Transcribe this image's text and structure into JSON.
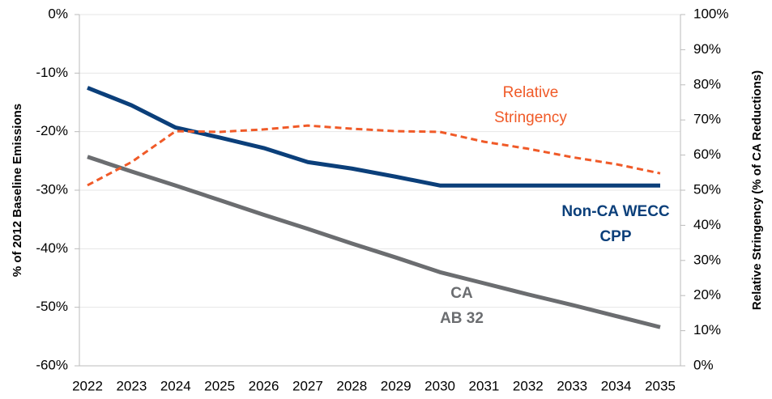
{
  "chart_data": {
    "type": "line",
    "y_label": "% of 2012 Baseline Emissions",
    "y2_label": "Relative Stringency (% of CA Reductions)",
    "categories": [
      "2022",
      "2023",
      "2024",
      "2025",
      "2026",
      "2027",
      "2028",
      "2029",
      "2030",
      "2031",
      "2032",
      "2033",
      "2034",
      "2035"
    ],
    "ylim": [
      -60,
      0
    ],
    "yticks": [
      {
        "value": 0,
        "label": "0%"
      },
      {
        "value": -10,
        "label": "-10%"
      },
      {
        "value": -20,
        "label": "-20%"
      },
      {
        "value": -30,
        "label": "-30%"
      },
      {
        "value": -40,
        "label": "-40%"
      },
      {
        "value": -50,
        "label": "-50%"
      },
      {
        "value": -60,
        "label": "-60%"
      }
    ],
    "y2lim": [
      0,
      100
    ],
    "y2ticks": [
      {
        "value": 0,
        "label": "0%"
      },
      {
        "value": 10,
        "label": "10%"
      },
      {
        "value": 20,
        "label": "20%"
      },
      {
        "value": 30,
        "label": "30%"
      },
      {
        "value": 40,
        "label": "40%"
      },
      {
        "value": 50,
        "label": "50%"
      },
      {
        "value": 60,
        "label": "60%"
      },
      {
        "value": 70,
        "label": "70%"
      },
      {
        "value": 80,
        "label": "80%"
      },
      {
        "value": 90,
        "label": "90%"
      },
      {
        "value": 100,
        "label": "100%"
      }
    ],
    "grid": true,
    "series": [
      {
        "name": [
          "Non-CA WECC",
          "CPP"
        ],
        "color": "#0b3f7a",
        "style": "solid",
        "values": [
          -12.5,
          -15.5,
          -19.3,
          -21,
          -22.8,
          -25.2,
          -26.3,
          -27.7,
          -29.2,
          -29.2,
          -29.2,
          -29.2,
          -29.2,
          -29.2
        ]
      },
      {
        "name": [
          "CA",
          "AB 32"
        ],
        "color": "#6b6d70",
        "style": "solid",
        "values": [
          -24.3,
          -26.8,
          -29.2,
          -31.7,
          -34.2,
          -36.6,
          -39.1,
          -41.5,
          -44,
          -45.9,
          -47.8,
          -49.6,
          -51.5,
          -53.4
        ]
      },
      {
        "name": [
          "Relative",
          "Stringency"
        ],
        "color": "#f05a28",
        "style": "dashed",
        "axis": "y2",
        "values": [
          51.4,
          58,
          66.8,
          66.6,
          67.3,
          68.4,
          67.5,
          66.8,
          66.6,
          63.8,
          61.8,
          59.4,
          57.4,
          54.8
        ]
      }
    ]
  }
}
